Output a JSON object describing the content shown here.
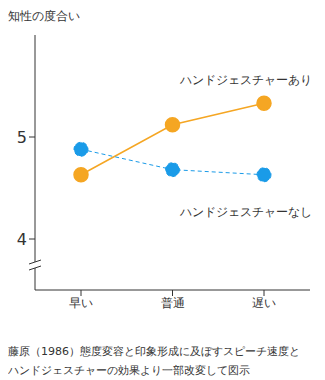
{
  "chart_data": {
    "type": "line",
    "y_label": "知性の度合い",
    "categories": [
      "早い",
      "普通",
      "遅い"
    ],
    "series": [
      {
        "name": "ハンドジェスチャーあり",
        "color": "#f5a623",
        "values": [
          4.63,
          5.12,
          5.33
        ],
        "line_style": "solid",
        "marker": "circle"
      },
      {
        "name": "ハンドジェスチャーなし",
        "color": "#1a9be8",
        "values": [
          4.88,
          4.68,
          4.63
        ],
        "line_style": "dashed",
        "marker": "circle"
      }
    ],
    "ylim": [
      3.5,
      6
    ],
    "yticks": [
      4,
      5
    ],
    "grid": false,
    "caption": [
      "藤原（1986）態度変容と印象形成に及ぼすスピーチ速度と",
      "ハンドジェスチャーの効果より一部改変して図示"
    ]
  }
}
